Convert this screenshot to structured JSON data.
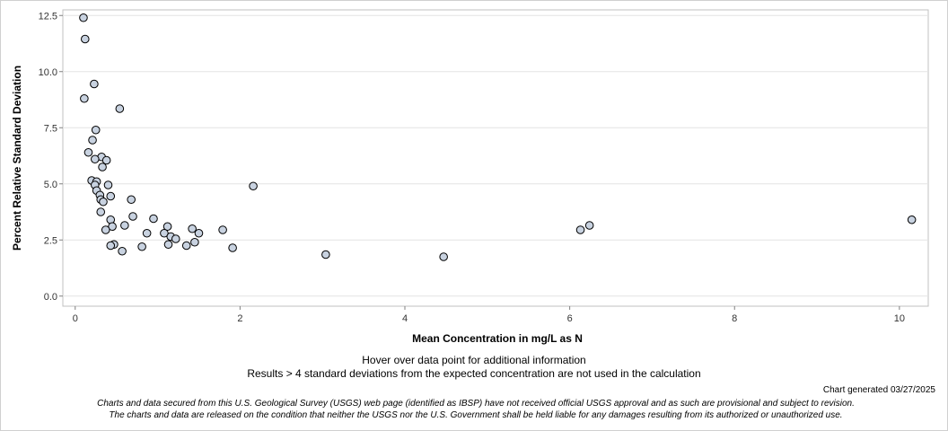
{
  "chart_data": {
    "type": "scatter",
    "title": "",
    "xlabel": "Mean Concentration in mg/L as N",
    "ylabel": "Percent Relative Standard Deviation",
    "xlim": [
      -0.15,
      10.35
    ],
    "ylim": [
      -0.45,
      12.75
    ],
    "x_ticks": [
      0,
      2,
      4,
      6,
      8,
      10
    ],
    "y_ticks": [
      0.0,
      2.5,
      5.0,
      7.5,
      10.0,
      12.5
    ],
    "x_tick_labels": [
      "0",
      "2",
      "4",
      "6",
      "8",
      "10"
    ],
    "y_tick_labels": [
      "0.0",
      "2.5",
      "5.0",
      "7.5",
      "10.0",
      "12.5"
    ],
    "grid": "horizontal",
    "marker_fill": "#c8d2e0",
    "marker_stroke": "#000000",
    "points": [
      {
        "x": 0.1,
        "y": 12.4
      },
      {
        "x": 0.12,
        "y": 11.45
      },
      {
        "x": 0.23,
        "y": 9.45
      },
      {
        "x": 0.11,
        "y": 8.8
      },
      {
        "x": 0.54,
        "y": 8.35
      },
      {
        "x": 0.25,
        "y": 7.4
      },
      {
        "x": 0.21,
        "y": 6.95
      },
      {
        "x": 0.16,
        "y": 6.4
      },
      {
        "x": 0.32,
        "y": 6.2
      },
      {
        "x": 0.24,
        "y": 6.1
      },
      {
        "x": 0.38,
        "y": 6.05
      },
      {
        "x": 0.33,
        "y": 5.75
      },
      {
        "x": 0.2,
        "y": 5.15
      },
      {
        "x": 0.26,
        "y": 5.1
      },
      {
        "x": 0.24,
        "y": 4.95
      },
      {
        "x": 0.4,
        "y": 4.95
      },
      {
        "x": 2.16,
        "y": 4.9
      },
      {
        "x": 0.26,
        "y": 4.7
      },
      {
        "x": 0.3,
        "y": 4.5
      },
      {
        "x": 0.43,
        "y": 4.45
      },
      {
        "x": 0.31,
        "y": 4.3
      },
      {
        "x": 0.34,
        "y": 4.2
      },
      {
        "x": 0.68,
        "y": 4.3
      },
      {
        "x": 0.31,
        "y": 3.75
      },
      {
        "x": 0.7,
        "y": 3.55
      },
      {
        "x": 0.95,
        "y": 3.45
      },
      {
        "x": 0.43,
        "y": 3.4
      },
      {
        "x": 10.15,
        "y": 3.4
      },
      {
        "x": 0.6,
        "y": 3.15
      },
      {
        "x": 0.45,
        "y": 3.1
      },
      {
        "x": 1.12,
        "y": 3.1
      },
      {
        "x": 6.24,
        "y": 3.15
      },
      {
        "x": 0.37,
        "y": 2.95
      },
      {
        "x": 1.42,
        "y": 3.0
      },
      {
        "x": 1.79,
        "y": 2.95
      },
      {
        "x": 6.13,
        "y": 2.95
      },
      {
        "x": 0.87,
        "y": 2.8
      },
      {
        "x": 1.08,
        "y": 2.8
      },
      {
        "x": 1.5,
        "y": 2.8
      },
      {
        "x": 1.16,
        "y": 2.65
      },
      {
        "x": 1.22,
        "y": 2.55
      },
      {
        "x": 1.45,
        "y": 2.4
      },
      {
        "x": 0.47,
        "y": 2.3
      },
      {
        "x": 0.43,
        "y": 2.25
      },
      {
        "x": 1.13,
        "y": 2.3
      },
      {
        "x": 1.35,
        "y": 2.25
      },
      {
        "x": 0.81,
        "y": 2.2
      },
      {
        "x": 1.91,
        "y": 2.15
      },
      {
        "x": 0.57,
        "y": 2.0
      },
      {
        "x": 3.04,
        "y": 1.85
      },
      {
        "x": 4.47,
        "y": 1.75
      }
    ]
  },
  "notes": {
    "hover": "Hover over data point for additional information",
    "results": "Results > 4 standard deviations from the expected concentration are not used in the calculation",
    "generated": "Chart generated 03/27/2025",
    "disclaimer_1": "Charts and data secured from this U.S. Geological Survey (USGS) web page (identified as IBSP) have not received official USGS approval and as such are provisional and subject to revision.",
    "disclaimer_2": "The charts and data are released on the condition that neither the USGS nor the U.S. Government shall be held liable for any damages resulting from its authorized or unauthorized use."
  }
}
